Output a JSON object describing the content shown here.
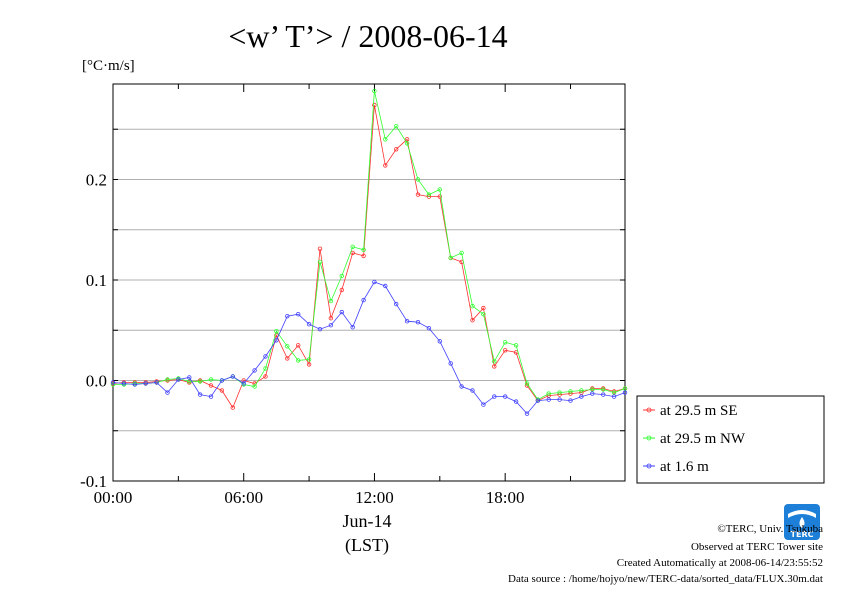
{
  "chart_data": {
    "type": "line",
    "title": "<w’ T’> / 2008-06-14",
    "ylabel": "[°C·m/s]",
    "xlabel_date": "Jun-14",
    "xlabel_tz": "(LST)",
    "x_ticks": [
      "00:00",
      "06:00",
      "12:00",
      "18:00"
    ],
    "y_ticks": [
      "-0.1",
      "0.0",
      "0.1",
      "0.2"
    ],
    "xlim_hours": [
      0,
      23.5
    ],
    "ylim": [
      -0.1,
      0.295
    ],
    "grid": true,
    "legend_position": "right",
    "interval_hours": 0.5,
    "series": [
      {
        "name": "at 29.5 m SE",
        "color": "#ff3030",
        "values": [
          -0.003,
          -0.002,
          -0.002,
          -0.002,
          -0.001,
          0.0,
          0.001,
          -0.002,
          0.0,
          -0.005,
          -0.01,
          -0.027,
          0.0,
          -0.003,
          0.004,
          0.045,
          0.022,
          0.035,
          0.016,
          0.131,
          0.062,
          0.09,
          0.127,
          0.124,
          0.274,
          0.214,
          0.23,
          0.24,
          0.185,
          0.183,
          0.183,
          0.122,
          0.118,
          0.06,
          0.072,
          0.014,
          0.03,
          0.028,
          -0.005,
          -0.02,
          -0.015,
          -0.014,
          -0.013,
          -0.012,
          -0.008,
          -0.008,
          -0.011,
          -0.008
        ]
      },
      {
        "name": "at 29.5 m NW",
        "color": "#30ff30",
        "values": [
          -0.004,
          -0.004,
          -0.003,
          -0.003,
          -0.002,
          0.001,
          0.002,
          -0.001,
          -0.001,
          0.001,
          0.0,
          0.004,
          -0.004,
          -0.006,
          0.012,
          0.049,
          0.034,
          0.02,
          0.021,
          0.118,
          0.079,
          0.104,
          0.133,
          0.13,
          0.288,
          0.24,
          0.253,
          0.236,
          0.2,
          0.185,
          0.19,
          0.122,
          0.127,
          0.074,
          0.066,
          0.019,
          0.038,
          0.035,
          -0.003,
          -0.019,
          -0.013,
          -0.012,
          -0.011,
          -0.01,
          -0.009,
          -0.009,
          -0.012,
          -0.008
        ]
      },
      {
        "name": "at 1.6 m",
        "color": "#4040ff",
        "values": [
          -0.002,
          -0.003,
          -0.004,
          -0.003,
          -0.002,
          -0.012,
          0.001,
          0.003,
          -0.014,
          -0.016,
          0.0,
          0.004,
          -0.003,
          0.01,
          0.024,
          0.04,
          0.064,
          0.066,
          0.056,
          0.051,
          0.055,
          0.068,
          0.053,
          0.08,
          0.098,
          0.094,
          0.076,
          0.059,
          0.058,
          0.052,
          0.039,
          0.017,
          -0.006,
          -0.01,
          -0.024,
          -0.016,
          -0.016,
          -0.021,
          -0.033,
          -0.02,
          -0.019,
          -0.019,
          -0.02,
          -0.016,
          -0.013,
          -0.014,
          -0.016,
          -0.012
        ]
      }
    ]
  },
  "credits": {
    "copyright": "©TERC, Univ. Tsukuba",
    "site": "Observed at TERC Tower site",
    "created": "Created Automatically at 2008-06-14/23:55:52",
    "source": "Data source : /home/hojyo/new/TERC-data/sorted_data/FLUX.30m.dat"
  },
  "logo": {
    "text": "TERC",
    "color": "#1d7fd8"
  }
}
